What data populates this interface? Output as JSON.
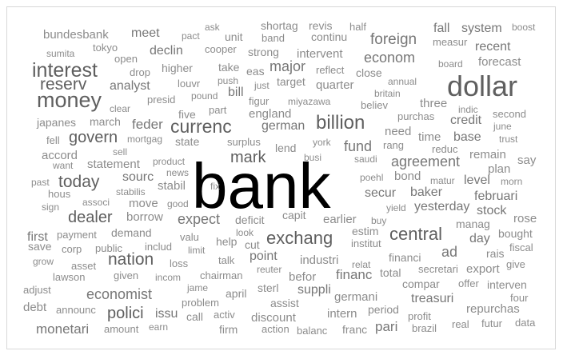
{
  "words": [
    "shortag",
    "revis",
    "half",
    "ask",
    "boost",
    "fall",
    "system",
    "bundesbank",
    "meet",
    "pact",
    "unit",
    "band",
    "continu",
    "foreign",
    "measur",
    "recent",
    "sumita",
    "tokyo",
    "declin",
    "cooper",
    "strong",
    "intervent",
    "econom",
    "open",
    "board",
    "forecast",
    "interest",
    "drop",
    "higher",
    "take",
    "eas",
    "major",
    "reflect",
    "close",
    "dollar",
    "push",
    "reserv",
    "analyst",
    "louvr",
    "just",
    "target",
    "quarter",
    "annual",
    "bill",
    "money",
    "presid",
    "pound",
    "figur",
    "miyazawa",
    "britain",
    "believ",
    "three",
    "clear",
    "five",
    "part",
    "england",
    "purchas",
    "indic",
    "second",
    "japanes",
    "march",
    "feder",
    "currenc",
    "german",
    "billion",
    "credit",
    "june",
    "fell",
    "govern",
    "mortgag",
    "state",
    "surplus",
    "need",
    "time",
    "base",
    "trust",
    "york",
    "rang",
    "fund",
    "lend",
    "reduc",
    "accord",
    "sell",
    "busi",
    "remain",
    "mark",
    "saudi",
    "agreement",
    "say",
    "statement",
    "want",
    "product",
    "bank",
    "plan",
    "news",
    "poehl",
    "bond",
    "sourc",
    "morn",
    "today",
    "stabil",
    "fix",
    "matur",
    "level",
    "past",
    "hous",
    "associ",
    "stabilis",
    "secur",
    "baker",
    "februari",
    "move",
    "good",
    "sign",
    "yield",
    "yesterday",
    "stock",
    "dealer",
    "borrow",
    "expect",
    "deficit",
    "capit",
    "earlier",
    "buy",
    "manag",
    "rose",
    "look",
    "estim",
    "central",
    "first",
    "payment",
    "demand",
    "valu",
    "institut",
    "bought",
    "exchang",
    "help",
    "cut",
    "day",
    "save",
    "corp",
    "public",
    "includ",
    "limit",
    "ad",
    "fiscal",
    "rais",
    "point",
    "nation",
    "grow",
    "asset",
    "loss",
    "talk",
    "industri",
    "financi",
    "relat",
    "secretari",
    "export",
    "give",
    "lawson",
    "given",
    "incom",
    "chairman",
    "reuter",
    "befor",
    "financ",
    "total",
    "compar",
    "offer",
    "interven",
    "adjust",
    "jame",
    "sterl",
    "suppli",
    "economist",
    "april",
    "germani",
    "treasuri",
    "four",
    "debt",
    "announc",
    "problem",
    "assist",
    "polici",
    "issu",
    "call",
    "activ",
    "period",
    "profit",
    "repurchas",
    "intern",
    "discount",
    "monetari",
    "amount",
    "earn",
    "firm",
    "action",
    "balanc",
    "franc",
    "pari",
    "brazil",
    "real",
    "futur",
    "data"
  ]
}
